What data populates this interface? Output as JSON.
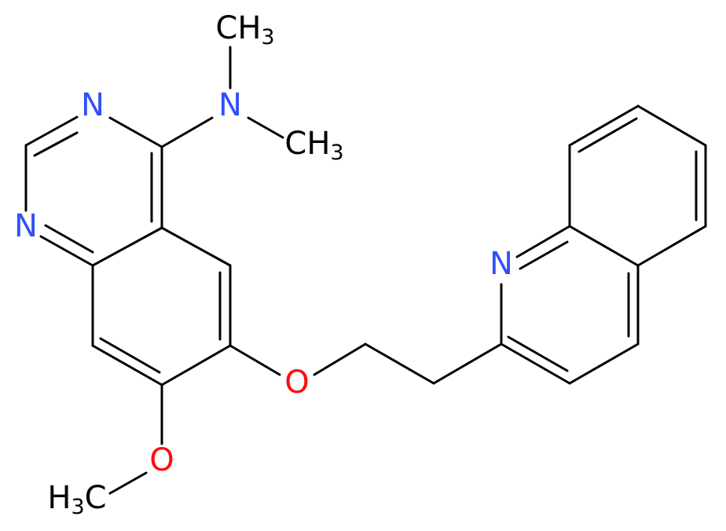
{
  "atoms": [
    {
      "label": "N"
    },
    {
      "label": "N"
    },
    {
      "label": "N"
    },
    {
      "label": "O"
    },
    {
      "label": "O"
    },
    {
      "label": "N"
    },
    {
      "main": "CH",
      "sub": "3"
    },
    {
      "main": "CH",
      "sub": "3"
    },
    {
      "main": "H",
      "sub": "3",
      "tail": "C"
    }
  ]
}
